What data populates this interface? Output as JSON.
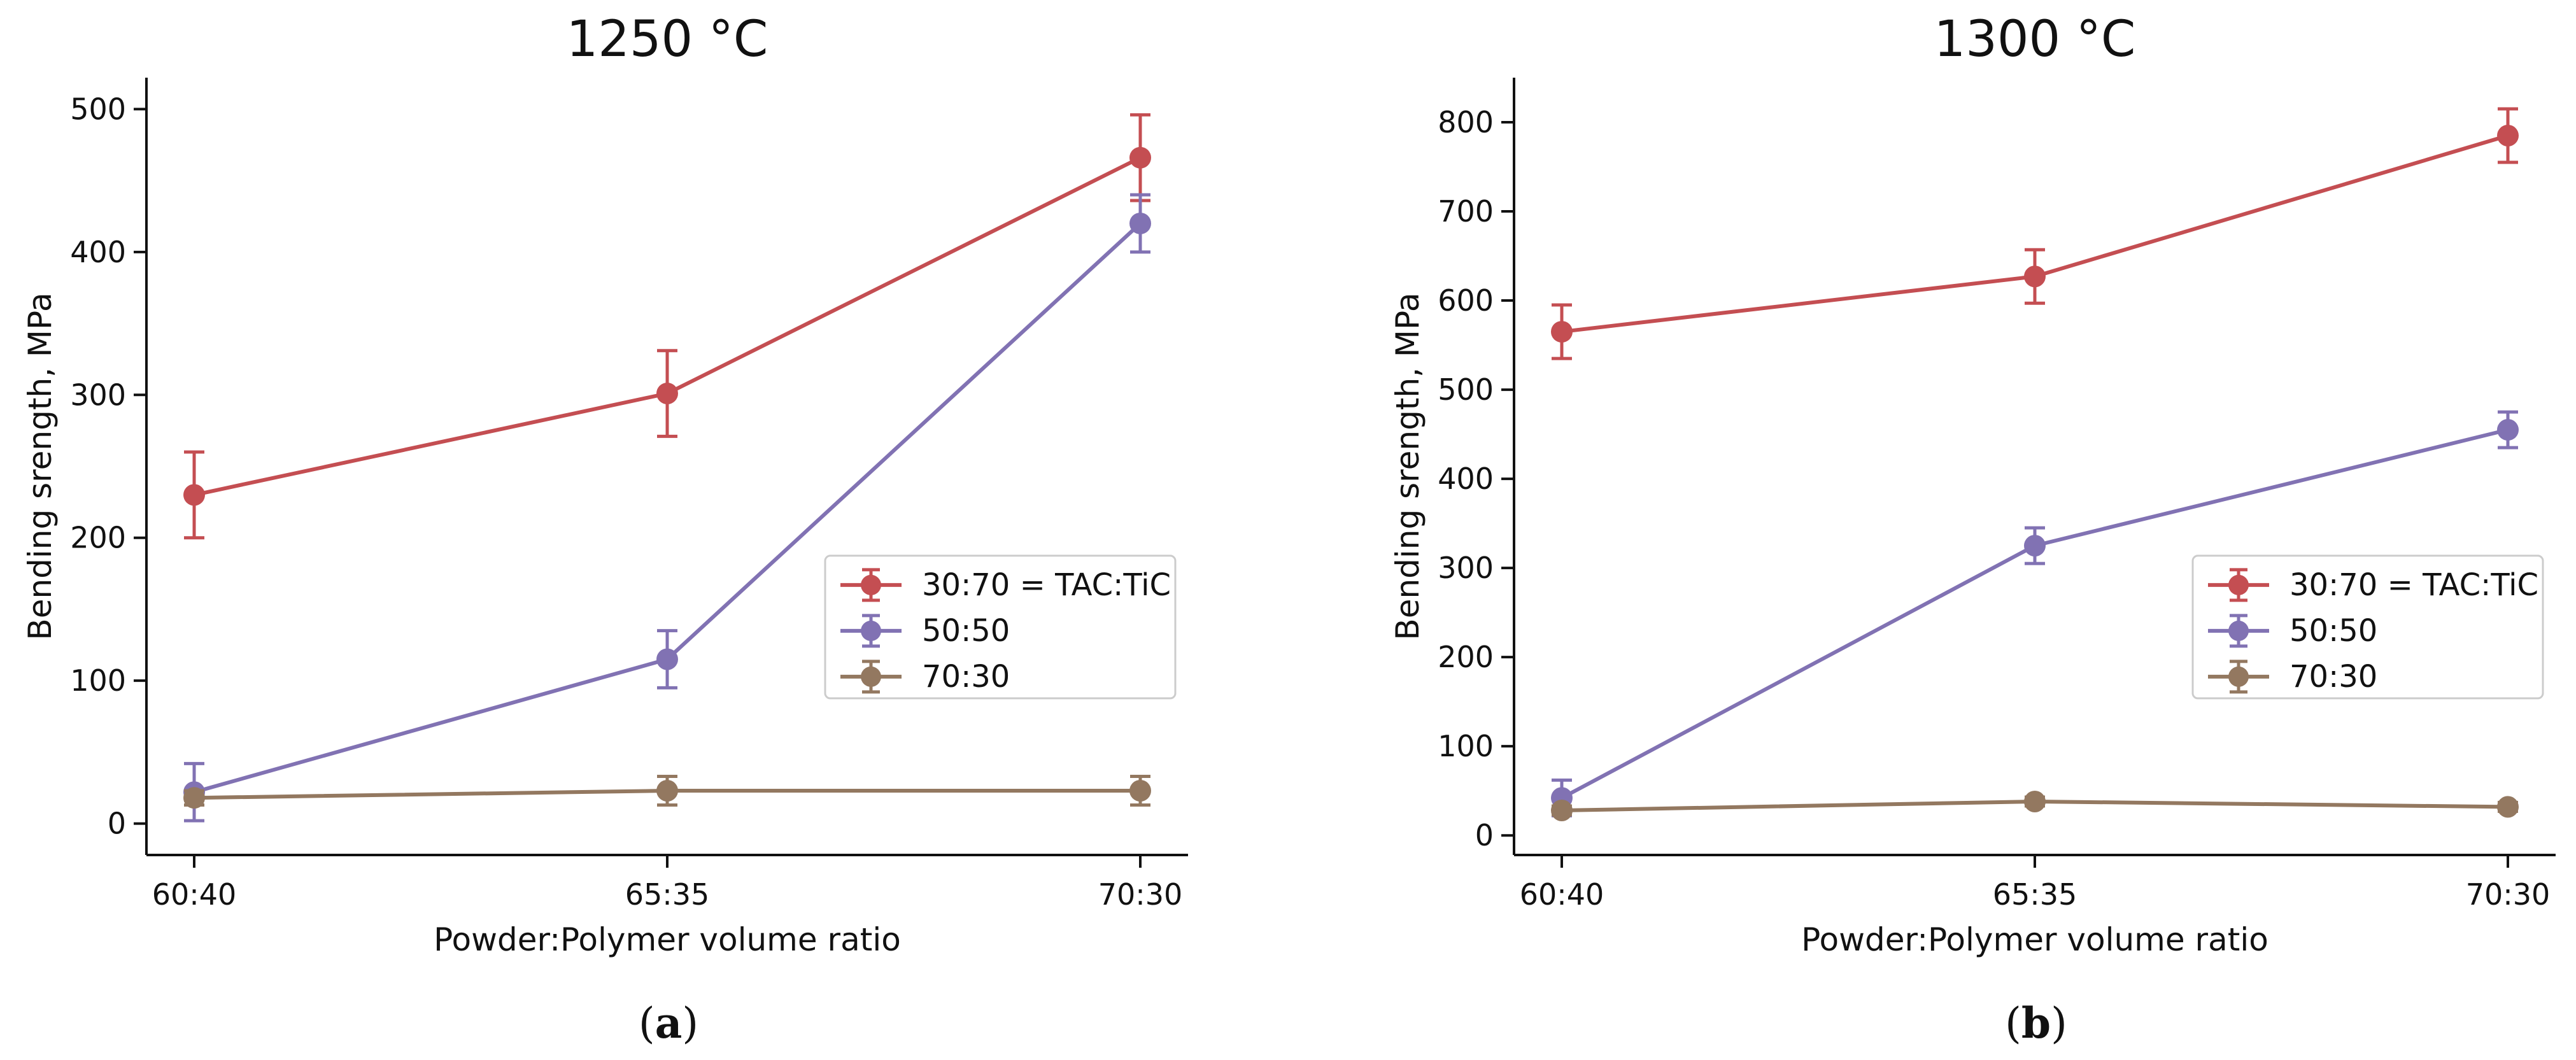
{
  "chart_data": [
    {
      "type": "line",
      "title": "1250 °C",
      "xlabel": "Powder:Polymer volume ratio",
      "ylabel": "Bending srength, MPa",
      "categories": [
        "60:40",
        "65:35",
        "70:30"
      ],
      "ylim": [
        -22,
        522
      ],
      "yticks": [
        0,
        100,
        200,
        300,
        400,
        500
      ],
      "grid": false,
      "legend_position": "center-right",
      "caption_letter": "a",
      "series": [
        {
          "name": "30:70 = TAC:TiC",
          "color": "#c44e52",
          "values": [
            230,
            301,
            466
          ],
          "errors": [
            30,
            30,
            30
          ]
        },
        {
          "name": "50:50",
          "color": "#8172b3",
          "values": [
            22,
            115,
            420
          ],
          "errors": [
            20,
            20,
            20
          ]
        },
        {
          "name": "70:30",
          "color": "#937860",
          "values": [
            18,
            23,
            23
          ],
          "errors": [
            5,
            10,
            10
          ]
        }
      ]
    },
    {
      "type": "line",
      "title": "1300 °C",
      "xlabel": "Powder:Polymer volume ratio",
      "ylabel": "Bending srength, MPa",
      "categories": [
        "60:40",
        "65:35",
        "70:30"
      ],
      "ylim": [
        -22,
        850
      ],
      "yticks": [
        0,
        100,
        200,
        300,
        400,
        500,
        600,
        700,
        800
      ],
      "grid": false,
      "legend_position": "center-right",
      "caption_letter": "b",
      "series": [
        {
          "name": "30:70 = TAC:TiC",
          "color": "#c44e52",
          "values": [
            565,
            627,
            785
          ],
          "errors": [
            30,
            30,
            30
          ]
        },
        {
          "name": "50:50",
          "color": "#8172b3",
          "values": [
            42,
            325,
            455
          ],
          "errors": [
            20,
            20,
            20
          ]
        },
        {
          "name": "70:30",
          "color": "#937860",
          "values": [
            28,
            38,
            32
          ],
          "errors": [
            5,
            5,
            5
          ]
        }
      ]
    }
  ]
}
